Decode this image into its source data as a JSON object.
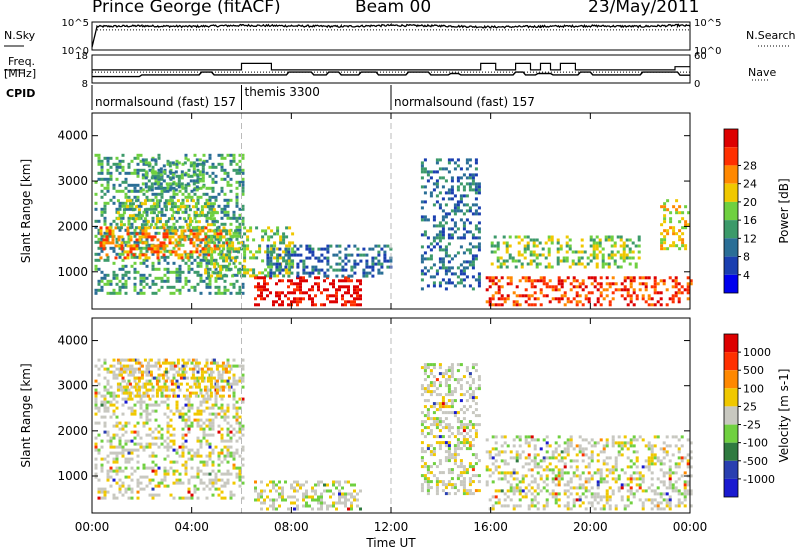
{
  "header": {
    "station": "Prince George (fitACF)",
    "beam": "Beam 00",
    "date": "23/May/2011"
  },
  "side_labels": {
    "nsky": "N.Sky",
    "freq_line1": "Freq.",
    "freq_line2": "[MHz]",
    "cpid": "CPID",
    "nsearch": "N.Search",
    "nave": "Nave"
  },
  "chart_data": [
    {
      "type": "line",
      "name": "noise-panel",
      "left_axis": {
        "label": "N.Sky",
        "ticks": [
          "10^5",
          "10^0"
        ],
        "scale": "log"
      },
      "right_axis": {
        "label": "N.Search",
        "ticks": [
          "10^5",
          "10^0"
        ],
        "scale": "log"
      },
      "series": [
        {
          "style": "solid",
          "x_hours": [
            0,
            0.2,
            2,
            4,
            6,
            8,
            10,
            12,
            14,
            16,
            18,
            20,
            22,
            23.5,
            24
          ],
          "y_log10": [
            0.5,
            4.2,
            4.3,
            4.2,
            4.4,
            4.3,
            4.2,
            4.4,
            4.3,
            4.1,
            4.2,
            4.3,
            4.2,
            4.4,
            4.3
          ]
        },
        {
          "style": "dotted",
          "x_hours": [
            0.2,
            24
          ],
          "y_log10": [
            3.6,
            3.6
          ]
        }
      ]
    },
    {
      "type": "line",
      "name": "frequency-panel",
      "left_axis": {
        "label": "Freq. [MHz]",
        "ticks": [
          18,
          8
        ],
        "ylim": [
          8,
          18
        ]
      },
      "right_axis": {
        "label": "Nave",
        "ticks": [
          60,
          0
        ],
        "ylim": [
          0,
          60
        ]
      },
      "series": [
        {
          "name": "Freq.",
          "style": "solid",
          "points": [
            [
              0,
              10.3
            ],
            [
              1.9,
              10.3
            ],
            [
              2.0,
              10.9
            ],
            [
              4.3,
              10.9
            ],
            [
              4.4,
              11.9
            ],
            [
              4.8,
              11.9
            ],
            [
              4.9,
              10.9
            ],
            [
              7.8,
              10.9
            ],
            [
              7.9,
              11.9
            ],
            [
              8.8,
              11.9
            ],
            [
              8.9,
              10.9
            ],
            [
              9.4,
              10.9
            ],
            [
              9.5,
              11.9
            ],
            [
              9.9,
              11.9
            ],
            [
              10.0,
              10.9
            ],
            [
              10.7,
              10.9
            ],
            [
              10.8,
              11.9
            ],
            [
              11.4,
              11.9
            ],
            [
              11.5,
              10.9
            ],
            [
              12.6,
              10.9
            ],
            [
              12.7,
              11.9
            ],
            [
              13.5,
              11.9
            ],
            [
              13.6,
              10.9
            ],
            [
              14.3,
              10.9
            ],
            [
              14.4,
              11.4
            ],
            [
              14.7,
              11.4
            ],
            [
              14.8,
              10.9
            ],
            [
              16.9,
              10.9
            ],
            [
              17.0,
              11.9
            ],
            [
              17.3,
              11.9
            ],
            [
              17.4,
              10.9
            ],
            [
              17.8,
              10.9
            ],
            [
              17.9,
              11.4
            ],
            [
              18.4,
              11.4
            ],
            [
              18.5,
              10.9
            ],
            [
              19.5,
              10.9
            ],
            [
              19.6,
              11.9
            ],
            [
              20.0,
              11.9
            ],
            [
              20.1,
              10.9
            ],
            [
              22.0,
              10.9
            ],
            [
              22.1,
              11.9
            ],
            [
              23.5,
              11.9
            ],
            [
              23.6,
              10.8
            ],
            [
              24,
              10.8
            ]
          ]
        },
        {
          "name": "Nave",
          "style": "dotted",
          "points": [
            [
              0,
              11.9
            ],
            [
              24,
              11.9
            ]
          ]
        }
      ],
      "nave_steps": [
        [
          0,
          28
        ],
        [
          6.0,
          28
        ],
        [
          6.0,
          42
        ],
        [
          7.2,
          42
        ],
        [
          7.2,
          28
        ],
        [
          15.6,
          28
        ],
        [
          15.6,
          42
        ],
        [
          16.2,
          42
        ],
        [
          16.2,
          28
        ],
        [
          17.0,
          28
        ],
        [
          17.0,
          42
        ],
        [
          17.6,
          42
        ],
        [
          17.6,
          28
        ],
        [
          18.0,
          28
        ],
        [
          18.0,
          42
        ],
        [
          18.4,
          42
        ],
        [
          18.4,
          28
        ],
        [
          18.8,
          28
        ],
        [
          18.8,
          42
        ],
        [
          19.4,
          42
        ],
        [
          19.4,
          28
        ],
        [
          23.4,
          28
        ],
        [
          23.4,
          35
        ],
        [
          24,
          35
        ]
      ]
    },
    {
      "type": "table",
      "name": "cpid-segments",
      "segments": [
        {
          "start_hour": 0,
          "end_hour": 6,
          "label": "normalsound (fast) 157"
        },
        {
          "start_hour": 6,
          "end_hour": 12,
          "label": "themis 3300"
        },
        {
          "start_hour": 12,
          "end_hour": 24,
          "label": "normalsound (fast) 157"
        }
      ]
    },
    {
      "type": "heatmap",
      "name": "power",
      "ylabel": "Slant Range [km]",
      "yticks": [
        1000,
        2000,
        3000,
        4000
      ],
      "ylim": [
        180,
        4500
      ],
      "xlim_hours": [
        0,
        24
      ],
      "colorbar": {
        "label": "Power [dB]",
        "ticks": [
          4,
          8,
          12,
          16,
          20,
          24,
          28
        ],
        "colors": [
          "#0000ee",
          "#1a3fb0",
          "#2a6e96",
          "#3c9a6a",
          "#6fd040",
          "#f0c800",
          "#ff8800",
          "#ff3000",
          "#dd0000"
        ]
      },
      "regions": [
        {
          "t0": 0.1,
          "t1": 6.0,
          "r0": 500,
          "r1": 3600,
          "level": 3
        },
        {
          "t0": 0.3,
          "t1": 5.5,
          "r0": 1300,
          "r1": 2000,
          "level": 6
        },
        {
          "t0": 1.0,
          "t1": 5.0,
          "r0": 2000,
          "r1": 2600,
          "level": 4
        },
        {
          "t0": 2.0,
          "t1": 4.5,
          "r0": 2800,
          "r1": 3500,
          "level": 3
        },
        {
          "t0": 4.5,
          "t1": 8.0,
          "r0": 900,
          "r1": 2000,
          "level": 4
        },
        {
          "t0": 6.5,
          "t1": 10.8,
          "r0": 250,
          "r1": 900,
          "level": 8
        },
        {
          "t0": 7.0,
          "t1": 12.0,
          "r0": 900,
          "r1": 1600,
          "level": 2
        },
        {
          "t0": 13.2,
          "t1": 15.5,
          "r0": 600,
          "r1": 3500,
          "level": 2
        },
        {
          "t0": 15.8,
          "t1": 24.0,
          "r0": 300,
          "r1": 900,
          "level": 7
        },
        {
          "t0": 16.0,
          "t1": 22.0,
          "r0": 1100,
          "r1": 1800,
          "level": 4
        },
        {
          "t0": 22.8,
          "t1": 24.0,
          "r0": 1500,
          "r1": 2600,
          "level": 5
        }
      ]
    },
    {
      "type": "heatmap",
      "name": "velocity",
      "ylabel": "Slant Range [km]",
      "yticks": [
        1000,
        2000,
        3000,
        4000
      ],
      "ylim": [
        180,
        4500
      ],
      "xlabel": "Time UT",
      "xticks": [
        "00:00",
        "04:00",
        "08:00",
        "12:00",
        "16:00",
        "20:00",
        "00:00"
      ],
      "colorbar": {
        "label": "Velocity [m s-1]",
        "ticks": [
          1000,
          500,
          100,
          25,
          -25,
          -100,
          -500,
          -1000
        ],
        "colors": [
          "#1a1ad0",
          "#2a3fb0",
          "#2f7a40",
          "#70d040",
          "#c8c8c0",
          "#f0c800",
          "#ff8800",
          "#ff3000",
          "#dd0000"
        ]
      },
      "regions": [
        {
          "t0": 0.1,
          "t1": 6.0,
          "r0": 500,
          "r1": 3600,
          "level": 4
        },
        {
          "t0": 1.0,
          "t1": 5.5,
          "r0": 2800,
          "r1": 3600,
          "level": 5
        },
        {
          "t0": 6.5,
          "t1": 10.8,
          "r0": 250,
          "r1": 900,
          "level": 4
        },
        {
          "t0": 13.2,
          "t1": 15.5,
          "r0": 600,
          "r1": 3500,
          "level": 4
        },
        {
          "t0": 15.8,
          "t1": 24.0,
          "r0": 300,
          "r1": 1900,
          "level": 4
        }
      ]
    }
  ]
}
